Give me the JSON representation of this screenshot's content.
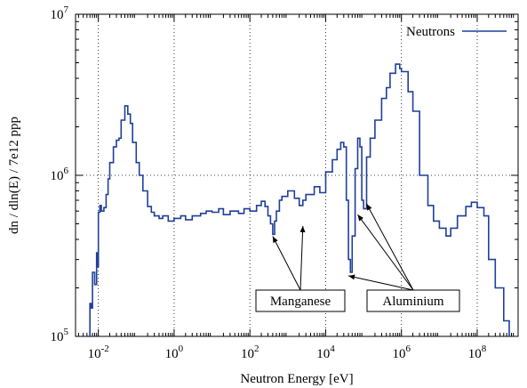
{
  "chart_data": {
    "type": "line",
    "style": "histogram-step",
    "xlabel": "Neutron Energy [eV]",
    "ylabel": "dn / dln(E) / 7e12 ppp",
    "xscale": "log",
    "yscale": "log",
    "xlim": [
      0.0025,
      1200000000
    ],
    "ylim": [
      100000,
      10000000
    ],
    "grid": true,
    "legend_position": "top-right",
    "x_ticks": [
      {
        "value": 0.01,
        "base": "10",
        "exp": "-2"
      },
      {
        "value": 1,
        "base": "10",
        "exp": "0"
      },
      {
        "value": 100,
        "base": "10",
        "exp": "2"
      },
      {
        "value": 10000,
        "base": "10",
        "exp": "4"
      },
      {
        "value": 1000000,
        "base": "10",
        "exp": "6"
      },
      {
        "value": 100000000,
        "base": "10",
        "exp": "8"
      }
    ],
    "y_ticks": [
      {
        "value": 100000,
        "base": "10",
        "exp": "5"
      },
      {
        "value": 1000000,
        "base": "10",
        "exp": "6"
      },
      {
        "value": 10000000,
        "base": "10",
        "exp": "7"
      }
    ],
    "series": [
      {
        "name": "Neutrons",
        "color": "#1f3f99",
        "points": [
          [
            0.0055,
            100000
          ],
          [
            0.006,
            160000
          ],
          [
            0.0065,
            150000
          ],
          [
            0.007,
            250000
          ],
          [
            0.008,
            210000
          ],
          [
            0.009,
            330000
          ],
          [
            0.0095,
            270000
          ],
          [
            0.01,
            590000
          ],
          [
            0.011,
            650000
          ],
          [
            0.012,
            600000
          ],
          [
            0.014,
            630000
          ],
          [
            0.016,
            760000
          ],
          [
            0.018,
            950000
          ],
          [
            0.02,
            1200000
          ],
          [
            0.025,
            1500000
          ],
          [
            0.03,
            1650000
          ],
          [
            0.035,
            1700000
          ],
          [
            0.04,
            2200000
          ],
          [
            0.05,
            2700000
          ],
          [
            0.06,
            2400000
          ],
          [
            0.07,
            2100000
          ],
          [
            0.08,
            1600000
          ],
          [
            0.1,
            1200000
          ],
          [
            0.12,
            1000000
          ],
          [
            0.15,
            800000
          ],
          [
            0.2,
            640000
          ],
          [
            0.25,
            590000
          ],
          [
            0.3,
            560000
          ],
          [
            0.4,
            540000
          ],
          [
            0.5,
            560000
          ],
          [
            0.7,
            520000
          ],
          [
            1,
            540000
          ],
          [
            1.5,
            560000
          ],
          [
            2,
            530000
          ],
          [
            3,
            560000
          ],
          [
            5,
            580000
          ],
          [
            7,
            600000
          ],
          [
            10,
            590000
          ],
          [
            15,
            620000
          ],
          [
            20,
            570000
          ],
          [
            30,
            600000
          ],
          [
            50,
            580000
          ],
          [
            70,
            620000
          ],
          [
            100,
            600000
          ],
          [
            150,
            650000
          ],
          [
            200,
            690000
          ],
          [
            250,
            640000
          ],
          [
            300,
            560000
          ],
          [
            350,
            500000
          ],
          [
            400,
            430000
          ],
          [
            450,
            520000
          ],
          [
            500,
            600000
          ],
          [
            600,
            700000
          ],
          [
            700,
            740000
          ],
          [
            1000,
            800000
          ],
          [
            1500,
            720000
          ],
          [
            2000,
            650000
          ],
          [
            2500,
            700000
          ],
          [
            3000,
            760000
          ],
          [
            5000,
            850000
          ],
          [
            7000,
            780000
          ],
          [
            10000,
            1050000
          ],
          [
            15000,
            1250000
          ],
          [
            20000,
            1450000
          ],
          [
            25000,
            1600000
          ],
          [
            30000,
            1500000
          ],
          [
            35000,
            700000
          ],
          [
            40000,
            300000
          ],
          [
            45000,
            250000
          ],
          [
            50000,
            420000
          ],
          [
            60000,
            1100000
          ],
          [
            70000,
            1700000
          ],
          [
            80000,
            1500000
          ],
          [
            90000,
            700000
          ],
          [
            100000,
            620000
          ],
          [
            120000,
            1300000
          ],
          [
            150000,
            1700000
          ],
          [
            200000,
            2200000
          ],
          [
            300000,
            3000000
          ],
          [
            400000,
            3500000
          ],
          [
            500000,
            4300000
          ],
          [
            700000,
            4900000
          ],
          [
            900000,
            4600000
          ],
          [
            1000000,
            4400000
          ],
          [
            1500000,
            3300000
          ],
          [
            2000000,
            2500000
          ],
          [
            3000000,
            1000000
          ],
          [
            5000000,
            650000
          ],
          [
            7000000,
            520000
          ],
          [
            10000000,
            470000
          ],
          [
            15000000,
            420000
          ],
          [
            20000000,
            470000
          ],
          [
            30000000,
            560000
          ],
          [
            50000000,
            640000
          ],
          [
            70000000,
            680000
          ],
          [
            100000000,
            630000
          ],
          [
            150000000,
            560000
          ],
          [
            200000000,
            300000
          ],
          [
            300000000,
            200000
          ],
          [
            500000000,
            125000
          ],
          [
            700000000,
            100000
          ]
        ]
      }
    ],
    "annotations": [
      {
        "text": "Manganese",
        "targets": [
          [
            400,
            440000
          ],
          [
            2500,
            510000
          ]
        ]
      },
      {
        "text": "Aluminium",
        "targets": [
          [
            40000,
            250000
          ],
          [
            70000,
            600000
          ],
          [
            120000,
            700000
          ]
        ]
      }
    ]
  }
}
